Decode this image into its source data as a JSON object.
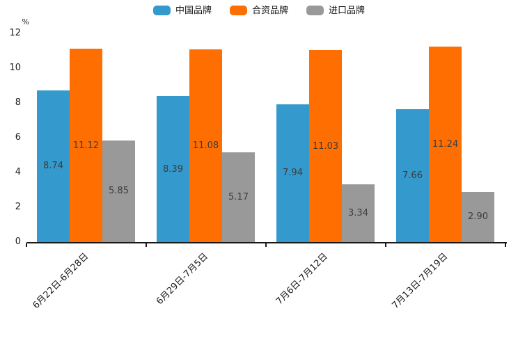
{
  "chart_data": {
    "type": "bar",
    "title": "",
    "ylabel": "%",
    "xlabel": "",
    "ylim": [
      0,
      12
    ],
    "yticks": [
      0,
      2,
      4,
      6,
      8,
      10,
      12
    ],
    "grid": false,
    "legend_position": "top-center",
    "value_labels_position": "inside-center",
    "categories": [
      "6月22日-6月28日",
      "6月29日-7月5日",
      "7月6日-7月12日",
      "7月13日-7月19日"
    ],
    "series": [
      {
        "name": "中国品牌",
        "color": "#3499CC",
        "values": [
          8.74,
          8.39,
          7.94,
          7.66
        ]
      },
      {
        "name": "合资品牌",
        "color": "#FF6E00",
        "values": [
          11.12,
          11.08,
          11.03,
          11.24
        ]
      },
      {
        "name": "进口品牌",
        "color": "#999999",
        "values": [
          5.85,
          5.17,
          3.34,
          2.9
        ]
      }
    ],
    "colors": {
      "axis": "#1a1a1a",
      "tick_label": "#1a1a1a",
      "value_label": "#3d3d3d",
      "background": "#ffffff"
    }
  }
}
